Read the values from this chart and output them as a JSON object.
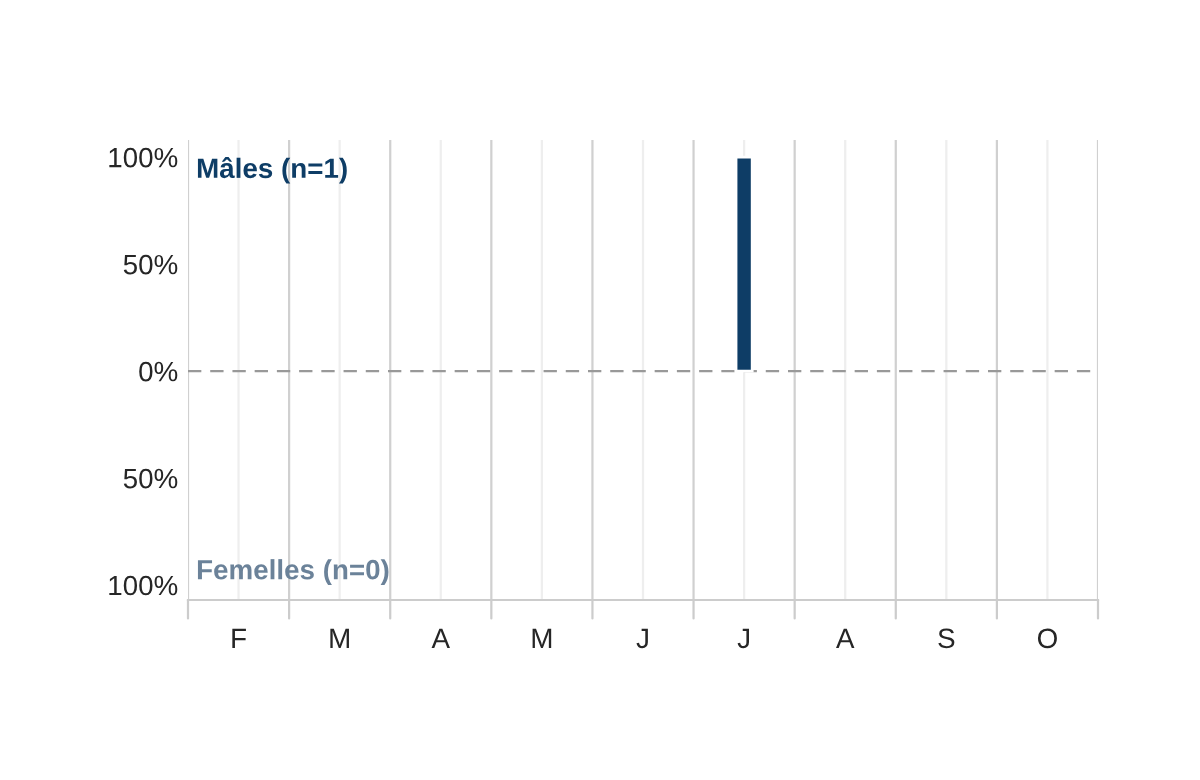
{
  "chart_data": {
    "type": "bar",
    "categories": [
      "F",
      "M",
      "A",
      "M",
      "J",
      "J",
      "A",
      "S",
      "O"
    ],
    "series": [
      {
        "name": "Mâles (n=1)",
        "color": "#0e3d66",
        "values": [
          null,
          null,
          null,
          null,
          null,
          100,
          null,
          null,
          null
        ]
      }
    ],
    "annotations": [
      "Femelles (n=0)"
    ],
    "ylim": [
      -107,
      108
    ],
    "yticks": [
      {
        "value": -100,
        "label": "100%"
      },
      {
        "value": -50,
        "label": "50%"
      },
      {
        "value": 0,
        "label": "0%"
      },
      {
        "value": 50,
        "label": "50%"
      },
      {
        "value": 100,
        "label": "100%"
      }
    ],
    "ref_lines": [
      {
        "axis": "y",
        "value": 0,
        "color": "#999999",
        "line_style": "dashed"
      }
    ],
    "grid": "x"
  }
}
